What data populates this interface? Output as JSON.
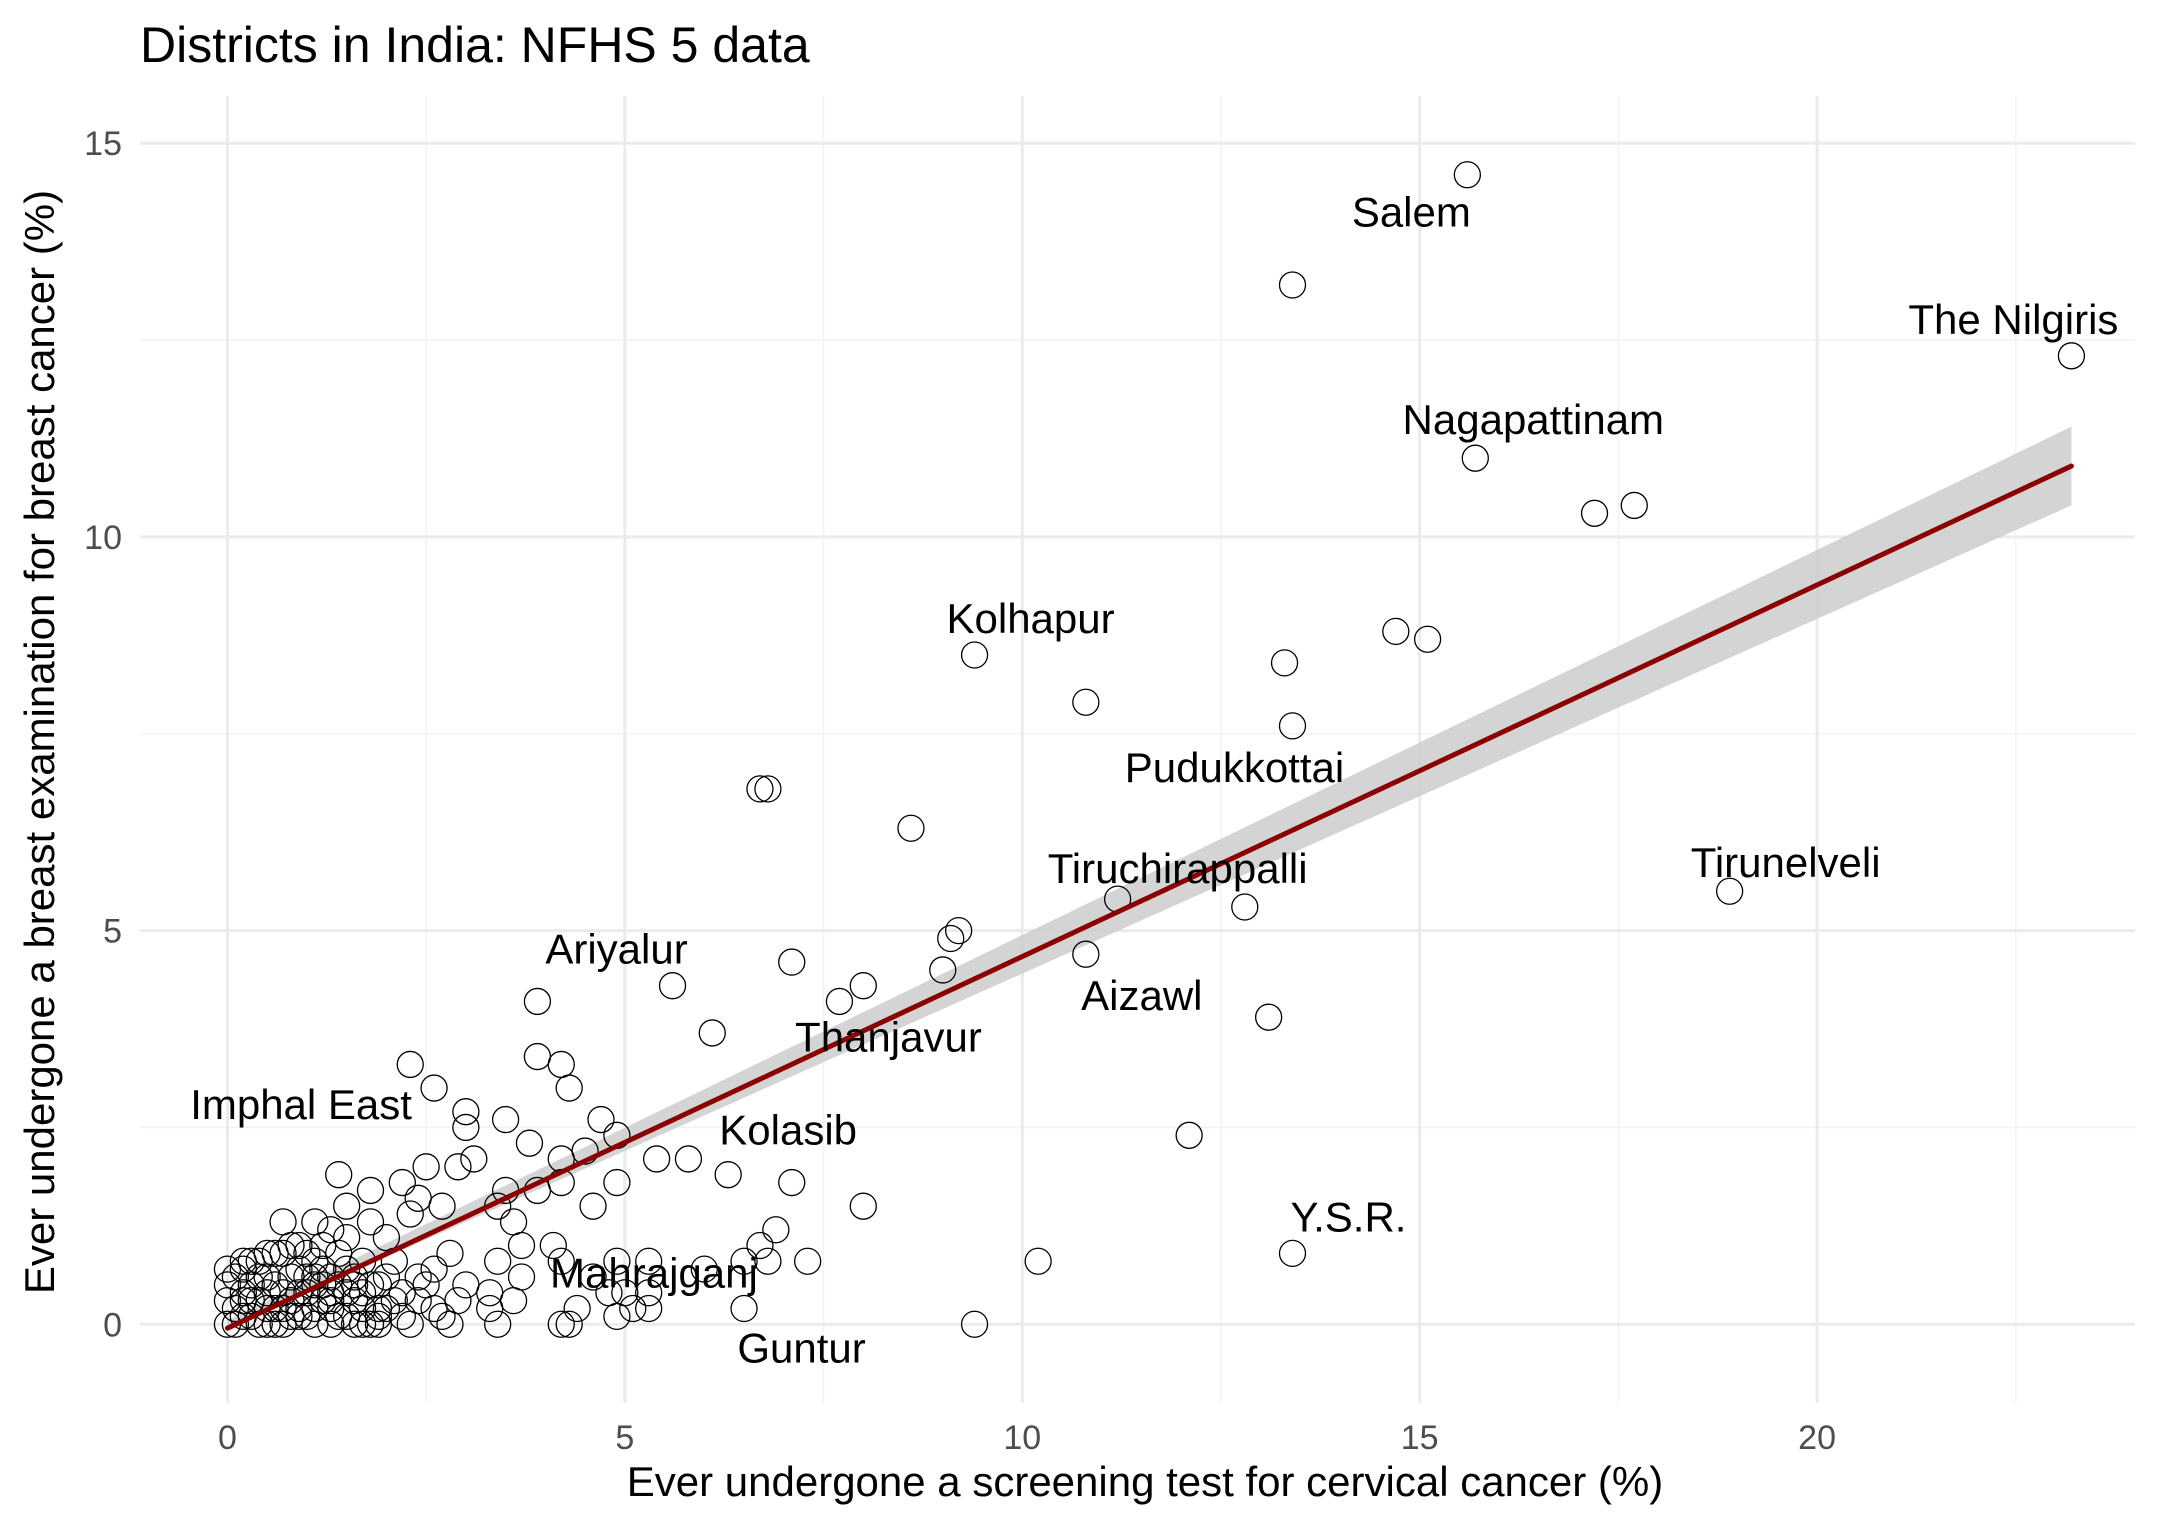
{
  "chart_data": {
    "type": "scatter",
    "title": "Districts in India: NFHS 5 data",
    "xlabel": "Ever undergone a screening test for cervical cancer (%)",
    "ylabel": "Ever undergone a breast examination for breast cancer (%)",
    "xlim": [
      -1.1,
      24.0
    ],
    "ylim": [
      -1.0,
      15.6
    ],
    "x_ticks": [
      0,
      5,
      10,
      15,
      20
    ],
    "y_ticks": [
      0,
      5,
      10,
      15
    ],
    "x_tick_labels": [
      "0",
      "5",
      "10",
      "15",
      "20"
    ],
    "y_tick_labels": [
      "0",
      "5",
      "10",
      "15"
    ],
    "grid": true,
    "legend": "none",
    "colors": {
      "points": "#000000",
      "fit_line": "#8b0000",
      "confidence_band": "#cccccc",
      "grid": "#ebebeb"
    },
    "trend_line": {
      "method": "linear",
      "x": [
        0,
        23.2
      ],
      "y": [
        -0.05,
        10.9
      ],
      "band_lower": [
        -0.05,
        10.4
      ],
      "band_upper": [
        0.05,
        11.4
      ]
    },
    "points": [
      {
        "x": 15.6,
        "y": 14.6
      },
      {
        "x": 13.4,
        "y": 13.2
      },
      {
        "x": 23.2,
        "y": 12.3
      },
      {
        "x": 15.7,
        "y": 11.0
      },
      {
        "x": 17.2,
        "y": 10.3
      },
      {
        "x": 17.7,
        "y": 10.4
      },
      {
        "x": 14.7,
        "y": 8.8
      },
      {
        "x": 15.1,
        "y": 8.7
      },
      {
        "x": 9.4,
        "y": 8.5
      },
      {
        "x": 13.3,
        "y": 8.4
      },
      {
        "x": 10.8,
        "y": 7.9
      },
      {
        "x": 13.4,
        "y": 7.6
      },
      {
        "x": 6.7,
        "y": 6.8
      },
      {
        "x": 6.8,
        "y": 6.8
      },
      {
        "x": 8.6,
        "y": 6.3
      },
      {
        "x": 18.9,
        "y": 5.5
      },
      {
        "x": 11.2,
        "y": 5.4
      },
      {
        "x": 12.8,
        "y": 5.3
      },
      {
        "x": 9.2,
        "y": 5.0
      },
      {
        "x": 9.1,
        "y": 4.9
      },
      {
        "x": 10.8,
        "y": 4.7
      },
      {
        "x": 7.1,
        "y": 4.6
      },
      {
        "x": 9.0,
        "y": 4.5
      },
      {
        "x": 5.6,
        "y": 4.3
      },
      {
        "x": 8.0,
        "y": 4.3
      },
      {
        "x": 7.7,
        "y": 4.1
      },
      {
        "x": 3.9,
        "y": 4.1
      },
      {
        "x": 13.1,
        "y": 3.9
      },
      {
        "x": 6.1,
        "y": 3.7
      },
      {
        "x": 3.9,
        "y": 3.4
      },
      {
        "x": 4.2,
        "y": 3.3
      },
      {
        "x": 2.3,
        "y": 3.3
      },
      {
        "x": 4.3,
        "y": 3.0
      },
      {
        "x": 2.6,
        "y": 3.0
      },
      {
        "x": 3.0,
        "y": 2.7
      },
      {
        "x": 4.7,
        "y": 2.6
      },
      {
        "x": 3.5,
        "y": 2.6
      },
      {
        "x": 3.0,
        "y": 2.5
      },
      {
        "x": 12.1,
        "y": 2.4
      },
      {
        "x": 4.9,
        "y": 2.4
      },
      {
        "x": 3.8,
        "y": 2.3
      },
      {
        "x": 4.5,
        "y": 2.2
      },
      {
        "x": 5.4,
        "y": 2.1
      },
      {
        "x": 5.8,
        "y": 2.1
      },
      {
        "x": 4.2,
        "y": 2.1
      },
      {
        "x": 3.1,
        "y": 2.1
      },
      {
        "x": 2.9,
        "y": 2.0
      },
      {
        "x": 2.5,
        "y": 2.0
      },
      {
        "x": 1.4,
        "y": 1.9
      },
      {
        "x": 6.3,
        "y": 1.9
      },
      {
        "x": 7.1,
        "y": 1.8
      },
      {
        "x": 4.9,
        "y": 1.8
      },
      {
        "x": 4.2,
        "y": 1.8
      },
      {
        "x": 3.9,
        "y": 1.7
      },
      {
        "x": 3.5,
        "y": 1.7
      },
      {
        "x": 2.2,
        "y": 1.8
      },
      {
        "x": 1.8,
        "y": 1.7
      },
      {
        "x": 2.4,
        "y": 1.6
      },
      {
        "x": 2.7,
        "y": 1.5
      },
      {
        "x": 3.4,
        "y": 1.5
      },
      {
        "x": 4.6,
        "y": 1.5
      },
      {
        "x": 8.0,
        "y": 1.5
      },
      {
        "x": 2.3,
        "y": 1.4
      },
      {
        "x": 1.5,
        "y": 1.5
      },
      {
        "x": 0.7,
        "y": 1.3
      },
      {
        "x": 1.1,
        "y": 1.3
      },
      {
        "x": 1.3,
        "y": 1.2
      },
      {
        "x": 1.8,
        "y": 1.3
      },
      {
        "x": 3.6,
        "y": 1.3
      },
      {
        "x": 6.9,
        "y": 1.2
      },
      {
        "x": 2.0,
        "y": 1.1
      },
      {
        "x": 1.5,
        "y": 1.1
      },
      {
        "x": 0.9,
        "y": 1.0
      },
      {
        "x": 3.7,
        "y": 1.0
      },
      {
        "x": 4.1,
        "y": 1.0
      },
      {
        "x": 6.7,
        "y": 1.0
      },
      {
        "x": 2.8,
        "y": 0.9
      },
      {
        "x": 0.5,
        "y": 0.9
      },
      {
        "x": 3.4,
        "y": 0.8
      },
      {
        "x": 4.2,
        "y": 0.8
      },
      {
        "x": 4.9,
        "y": 0.8
      },
      {
        "x": 5.3,
        "y": 0.8
      },
      {
        "x": 6.5,
        "y": 0.8
      },
      {
        "x": 6.8,
        "y": 0.8
      },
      {
        "x": 7.3,
        "y": 0.8
      },
      {
        "x": 10.2,
        "y": 0.8
      },
      {
        "x": 13.4,
        "y": 0.9
      },
      {
        "x": 2.1,
        "y": 0.8
      },
      {
        "x": 0.2,
        "y": 0.7
      },
      {
        "x": 6.0,
        "y": 0.7
      },
      {
        "x": 2.6,
        "y": 0.7
      },
      {
        "x": 3.7,
        "y": 0.6
      },
      {
        "x": 4.6,
        "y": 0.6
      },
      {
        "x": 1.6,
        "y": 0.6
      },
      {
        "x": 2.4,
        "y": 0.6
      },
      {
        "x": 3.0,
        "y": 0.5
      },
      {
        "x": 1.1,
        "y": 0.5
      },
      {
        "x": 3.3,
        "y": 0.4
      },
      {
        "x": 4.8,
        "y": 0.4
      },
      {
        "x": 5.0,
        "y": 0.4
      },
      {
        "x": 5.3,
        "y": 0.4
      },
      {
        "x": 2.2,
        "y": 0.4
      },
      {
        "x": 1.3,
        "y": 0.3
      },
      {
        "x": 2.9,
        "y": 0.3
      },
      {
        "x": 3.6,
        "y": 0.3
      },
      {
        "x": 3.3,
        "y": 0.2
      },
      {
        "x": 4.4,
        "y": 0.2
      },
      {
        "x": 5.1,
        "y": 0.2
      },
      {
        "x": 5.3,
        "y": 0.2
      },
      {
        "x": 6.5,
        "y": 0.2
      },
      {
        "x": 2.7,
        "y": 0.1
      },
      {
        "x": 1.9,
        "y": 0.1
      },
      {
        "x": 3.4,
        "y": 0.0
      },
      {
        "x": 2.3,
        "y": 0.0
      },
      {
        "x": 4.3,
        "y": 0.0
      },
      {
        "x": 4.2,
        "y": 0.0
      },
      {
        "x": 2.8,
        "y": 0.0
      },
      {
        "x": 4.9,
        "y": 0.1
      },
      {
        "x": 9.4,
        "y": 0.0
      },
      {
        "x": 0.0,
        "y": 0.0
      },
      {
        "x": 0.1,
        "y": 0.2
      },
      {
        "x": 0.2,
        "y": 0.4
      },
      {
        "x": 0.3,
        "y": 0.1
      },
      {
        "x": 0.4,
        "y": 0.3
      },
      {
        "x": 0.5,
        "y": 0.0
      },
      {
        "x": 0.6,
        "y": 0.5
      },
      {
        "x": 0.7,
        "y": 0.2
      },
      {
        "x": 0.8,
        "y": 0.6
      },
      {
        "x": 0.9,
        "y": 0.1
      },
      {
        "x": 1.0,
        "y": 0.4
      },
      {
        "x": 1.1,
        "y": 0.0
      },
      {
        "x": 1.2,
        "y": 0.7
      },
      {
        "x": 1.3,
        "y": 0.2
      },
      {
        "x": 1.4,
        "y": 0.5
      },
      {
        "x": 1.5,
        "y": 0.1
      },
      {
        "x": 1.6,
        "y": 0.3
      },
      {
        "x": 1.7,
        "y": 0.8
      },
      {
        "x": 1.8,
        "y": 0.0
      },
      {
        "x": 1.9,
        "y": 0.5
      },
      {
        "x": 2.0,
        "y": 0.2
      },
      {
        "x": 0.0,
        "y": 0.3
      },
      {
        "x": 0.1,
        "y": 0.6
      },
      {
        "x": 0.2,
        "y": 0.1
      },
      {
        "x": 0.3,
        "y": 0.8
      },
      {
        "x": 0.4,
        "y": 0.0
      },
      {
        "x": 0.5,
        "y": 0.4
      },
      {
        "x": 0.6,
        "y": 0.2
      },
      {
        "x": 0.7,
        "y": 0.9
      },
      {
        "x": 0.8,
        "y": 0.3
      },
      {
        "x": 0.9,
        "y": 0.7
      },
      {
        "x": 1.0,
        "y": 0.1
      },
      {
        "x": 1.1,
        "y": 0.6
      },
      {
        "x": 1.2,
        "y": 0.3
      },
      {
        "x": 1.3,
        "y": 0.0
      },
      {
        "x": 1.4,
        "y": 0.9
      },
      {
        "x": 1.5,
        "y": 0.4
      },
      {
        "x": 1.6,
        "y": 0.0
      },
      {
        "x": 1.7,
        "y": 0.2
      },
      {
        "x": 1.8,
        "y": 0.5
      },
      {
        "x": 1.9,
        "y": 0.2
      },
      {
        "x": 2.1,
        "y": 0.3
      },
      {
        "x": 0.0,
        "y": 0.5
      },
      {
        "x": 0.1,
        "y": 0.0
      },
      {
        "x": 0.2,
        "y": 0.3
      },
      {
        "x": 0.3,
        "y": 0.5
      },
      {
        "x": 0.4,
        "y": 0.6
      },
      {
        "x": 0.5,
        "y": 0.2
      },
      {
        "x": 0.6,
        "y": 0.0
      },
      {
        "x": 0.7,
        "y": 0.4
      },
      {
        "x": 0.8,
        "y": 0.1
      },
      {
        "x": 0.9,
        "y": 0.4
      },
      {
        "x": 1.0,
        "y": 0.6
      },
      {
        "x": 1.1,
        "y": 0.2
      },
      {
        "x": 1.2,
        "y": 0.5
      },
      {
        "x": 1.3,
        "y": 0.4
      },
      {
        "x": 1.4,
        "y": 0.1
      },
      {
        "x": 1.6,
        "y": 0.5
      },
      {
        "x": 1.7,
        "y": 0.4
      },
      {
        "x": 1.9,
        "y": 0.0
      },
      {
        "x": 0.0,
        "y": 0.7
      },
      {
        "x": 0.2,
        "y": 0.8
      },
      {
        "x": 0.4,
        "y": 0.8
      },
      {
        "x": 0.6,
        "y": 0.9
      },
      {
        "x": 0.8,
        "y": 1.0
      },
      {
        "x": 1.0,
        "y": 0.9
      },
      {
        "x": 1.2,
        "y": 1.0
      },
      {
        "x": 0.3,
        "y": 0.3
      },
      {
        "x": 0.5,
        "y": 0.6
      },
      {
        "x": 0.7,
        "y": 0.0
      },
      {
        "x": 0.9,
        "y": 0.2
      },
      {
        "x": 1.1,
        "y": 0.8
      },
      {
        "x": 1.3,
        "y": 0.6
      },
      {
        "x": 1.5,
        "y": 0.7
      },
      {
        "x": 1.7,
        "y": 0.0
      },
      {
        "x": 2.0,
        "y": 0.6
      },
      {
        "x": 2.2,
        "y": 0.1
      },
      {
        "x": 2.4,
        "y": 0.3
      },
      {
        "x": 2.5,
        "y": 0.5
      },
      {
        "x": 2.6,
        "y": 0.2
      }
    ],
    "labels": [
      {
        "text": "Salem",
        "x": 15.6,
        "y": 14.6
      },
      {
        "text": "The Nilgiris",
        "x": 23.2,
        "y": 12.3
      },
      {
        "text": "Nagapattinam",
        "x": 15.7,
        "y": 11.0
      },
      {
        "text": "Kolhapur",
        "x": 9.4,
        "y": 8.5
      },
      {
        "text": "Pudukkottai",
        "x": 13.4,
        "y": 7.6
      },
      {
        "text": "Tirunelveli",
        "x": 18.9,
        "y": 5.5
      },
      {
        "text": "Tiruchirappalli",
        "x": 11.2,
        "y": 5.4
      },
      {
        "text": "Ariyalur",
        "x": 5.6,
        "y": 4.3
      },
      {
        "text": "Thanjavur",
        "x": 7.7,
        "y": 4.1
      },
      {
        "text": "Aizawl",
        "x": 10.8,
        "y": 4.7
      },
      {
        "text": "Imphal East",
        "x": 2.6,
        "y": 3.0
      },
      {
        "text": "Kolasib",
        "x": 6.3,
        "y": 1.9
      },
      {
        "text": "Y.S.R.",
        "x": 13.4,
        "y": 0.9
      },
      {
        "text": "Mahrajganj",
        "x": 6.7,
        "y": 1.0
      },
      {
        "text": "Guntur",
        "x": 9.4,
        "y": 0.0
      }
    ]
  }
}
